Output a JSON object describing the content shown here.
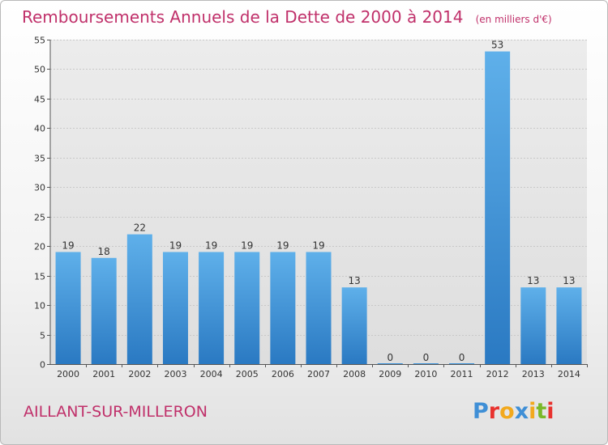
{
  "chart_data": {
    "type": "bar",
    "title": "Remboursements Annuels de la Dette de 2000 à 2014",
    "unit": "(en milliers d'€)",
    "categories": [
      "2000",
      "2001",
      "2002",
      "2003",
      "2004",
      "2005",
      "2006",
      "2007",
      "2008",
      "2009",
      "2010",
      "2011",
      "2012",
      "2013",
      "2014"
    ],
    "values": [
      19,
      18,
      22,
      19,
      19,
      19,
      19,
      19,
      13,
      0,
      0,
      0,
      53,
      13,
      13
    ],
    "ylim": [
      0,
      55
    ],
    "yticks": [
      0,
      5,
      10,
      15,
      20,
      25,
      30,
      35,
      40,
      45,
      50,
      55
    ],
    "grid": true,
    "bar_color": "#3f93d8"
  },
  "commune": "AILLANT-SUR-MILLERON",
  "logo": {
    "letters": [
      "P",
      "r",
      "o",
      "x",
      "i",
      "t",
      "i"
    ],
    "colors": [
      "#3f8fd6",
      "#e8322e",
      "#f2a91d",
      "#3f8fd6",
      "#f2a91d",
      "#7ab829",
      "#e8322e"
    ]
  }
}
